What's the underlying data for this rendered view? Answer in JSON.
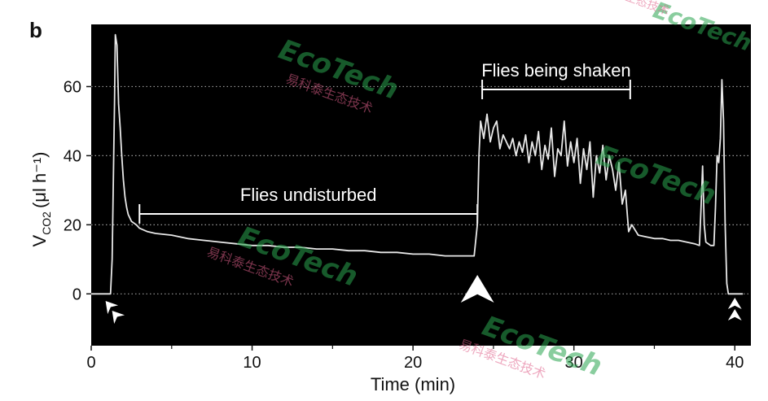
{
  "panel_label": "b",
  "watermark": {
    "brand": "EcoTech",
    "registered": "®",
    "chinese": "易科泰生态技术"
  },
  "chart_data": {
    "type": "line",
    "title": "",
    "xlabel": "Time (min)",
    "ylabel": {
      "main": "V",
      "sub": "CO2",
      "unit": "(μl h⁻¹)"
    },
    "xlim": [
      0,
      41
    ],
    "ylim": [
      -15,
      78
    ],
    "xticks": [
      0,
      10,
      20,
      30,
      40
    ],
    "yticks": [
      0,
      20,
      40,
      60
    ],
    "grid": "horizontal-dotted",
    "background": "#000000",
    "line_color": "#e8e8e8",
    "series": [
      {
        "values": [
          [
            0,
            0
          ],
          [
            1.2,
            0
          ],
          [
            1.3,
            10
          ],
          [
            1.45,
            55
          ],
          [
            1.5,
            75
          ],
          [
            1.6,
            72
          ],
          [
            1.7,
            55
          ],
          [
            1.8,
            48
          ],
          [
            1.9,
            40
          ],
          [
            2.0,
            33
          ],
          [
            2.1,
            28
          ],
          [
            2.2,
            25
          ],
          [
            2.3,
            23
          ],
          [
            2.5,
            21
          ],
          [
            2.8,
            20
          ],
          [
            3.0,
            19
          ],
          [
            3.5,
            18
          ],
          [
            4,
            17.5
          ],
          [
            5,
            17
          ],
          [
            6,
            16
          ],
          [
            7,
            15.5
          ],
          [
            8,
            15
          ],
          [
            9,
            14.5
          ],
          [
            10,
            14
          ],
          [
            11,
            14
          ],
          [
            12,
            13.5
          ],
          [
            13,
            13.5
          ],
          [
            14,
            13
          ],
          [
            15,
            13
          ],
          [
            16,
            12.5
          ],
          [
            17,
            12.5
          ],
          [
            18,
            12
          ],
          [
            19,
            12
          ],
          [
            20,
            11.5
          ],
          [
            21,
            11.5
          ],
          [
            22,
            11
          ],
          [
            23,
            11
          ],
          [
            23.8,
            11
          ],
          [
            24.0,
            20
          ],
          [
            24.1,
            40
          ],
          [
            24.2,
            50
          ],
          [
            24.4,
            45
          ],
          [
            24.6,
            52
          ],
          [
            24.8,
            44
          ],
          [
            25,
            48
          ],
          [
            25.2,
            50
          ],
          [
            25.4,
            42
          ],
          [
            25.6,
            46
          ],
          [
            25.8,
            44
          ],
          [
            26,
            42
          ],
          [
            26.2,
            45
          ],
          [
            26.4,
            40
          ],
          [
            26.6,
            44
          ],
          [
            26.8,
            41
          ],
          [
            27,
            46
          ],
          [
            27.2,
            38
          ],
          [
            27.4,
            44
          ],
          [
            27.6,
            40
          ],
          [
            27.8,
            47
          ],
          [
            28,
            36
          ],
          [
            28.2,
            43
          ],
          [
            28.4,
            39
          ],
          [
            28.6,
            48
          ],
          [
            28.8,
            34
          ],
          [
            29,
            42
          ],
          [
            29.2,
            40
          ],
          [
            29.4,
            50
          ],
          [
            29.6,
            37
          ],
          [
            29.8,
            44
          ],
          [
            30,
            38
          ],
          [
            30.2,
            45
          ],
          [
            30.4,
            32
          ],
          [
            30.6,
            42
          ],
          [
            30.8,
            36
          ],
          [
            31,
            44
          ],
          [
            31.2,
            28
          ],
          [
            31.4,
            40
          ],
          [
            31.6,
            35
          ],
          [
            31.8,
            43
          ],
          [
            32,
            33
          ],
          [
            32.2,
            40
          ],
          [
            32.4,
            36
          ],
          [
            32.6,
            30
          ],
          [
            32.8,
            38
          ],
          [
            33,
            26
          ],
          [
            33.2,
            30
          ],
          [
            33.4,
            18
          ],
          [
            33.6,
            20
          ],
          [
            34,
            17
          ],
          [
            34.5,
            16.5
          ],
          [
            35,
            16
          ],
          [
            35.5,
            16
          ],
          [
            36,
            15.5
          ],
          [
            36.5,
            15.5
          ],
          [
            37,
            15
          ],
          [
            37.5,
            14.5
          ],
          [
            37.8,
            14
          ],
          [
            37.9,
            25
          ],
          [
            38.0,
            37
          ],
          [
            38.1,
            20
          ],
          [
            38.2,
            15
          ],
          [
            38.5,
            14
          ],
          [
            38.7,
            14
          ],
          [
            38.8,
            25
          ],
          [
            38.9,
            40
          ],
          [
            39.0,
            38
          ],
          [
            39.1,
            45
          ],
          [
            39.2,
            62
          ],
          [
            39.3,
            50
          ],
          [
            39.4,
            20
          ],
          [
            39.5,
            3
          ],
          [
            39.6,
            0
          ],
          [
            40.5,
            0
          ]
        ]
      }
    ],
    "annotations": [
      {
        "text": "Flies undisturbed",
        "span": [
          3,
          24
        ]
      },
      {
        "text": "Flies being shaken",
        "span": [
          24.3,
          33.5
        ]
      }
    ],
    "markers": [
      {
        "label": "arrowhead-pair",
        "x": 1.6
      },
      {
        "label": "arrowhead",
        "x": 24
      },
      {
        "label": "arrowhead-pair",
        "x": 40
      }
    ]
  }
}
